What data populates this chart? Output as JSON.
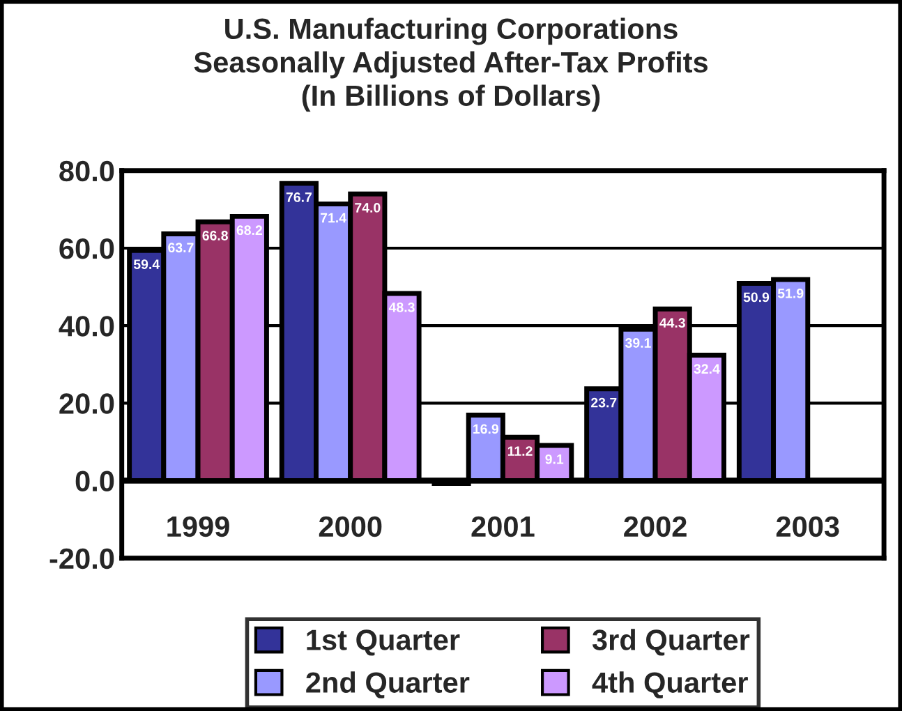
{
  "chart_data": {
    "type": "bar",
    "title": "U.S. Manufacturing Corporations\nSeasonally Adjusted After-Tax Profits\n(In Billions of Dollars)",
    "categories": [
      "1999",
      "2000",
      "2001",
      "2002",
      "2003"
    ],
    "series": [
      {
        "name": "1st Quarter",
        "color": "#333399",
        "values": [
          59.4,
          76.7,
          -0.7,
          23.7,
          50.9
        ],
        "value_labels": [
          "59.4",
          "76.7",
          null,
          "23.7",
          "50.9"
        ]
      },
      {
        "name": "2nd Quarter",
        "color": "#9999ff",
        "values": [
          63.7,
          71.4,
          16.9,
          39.1,
          51.9
        ],
        "value_labels": [
          "63.7",
          "71.4",
          "16.9",
          "39.1",
          "51.9"
        ]
      },
      {
        "name": "3rd Quarter",
        "color": "#993366",
        "values": [
          66.8,
          74.0,
          11.2,
          44.3,
          null
        ],
        "value_labels": [
          "66.8",
          "74.0",
          "11.2",
          "44.3",
          null
        ]
      },
      {
        "name": "4th Quarter",
        "color": "#cc99ff",
        "values": [
          68.2,
          48.3,
          9.1,
          32.4,
          null
        ],
        "value_labels": [
          "68.2",
          "48.3",
          "9.1",
          "32.4",
          null
        ]
      }
    ],
    "ylim": [
      -20,
      80
    ],
    "yticks": [
      {
        "value": -20,
        "label": "-20.0"
      },
      {
        "value": 0,
        "label": "0.0"
      },
      {
        "value": 20,
        "label": "20.0"
      },
      {
        "value": 40,
        "label": "40.0"
      },
      {
        "value": 60,
        "label": "60.0"
      },
      {
        "value": 80,
        "label": "80.0"
      }
    ],
    "grid": "y",
    "legend": "bottom"
  }
}
